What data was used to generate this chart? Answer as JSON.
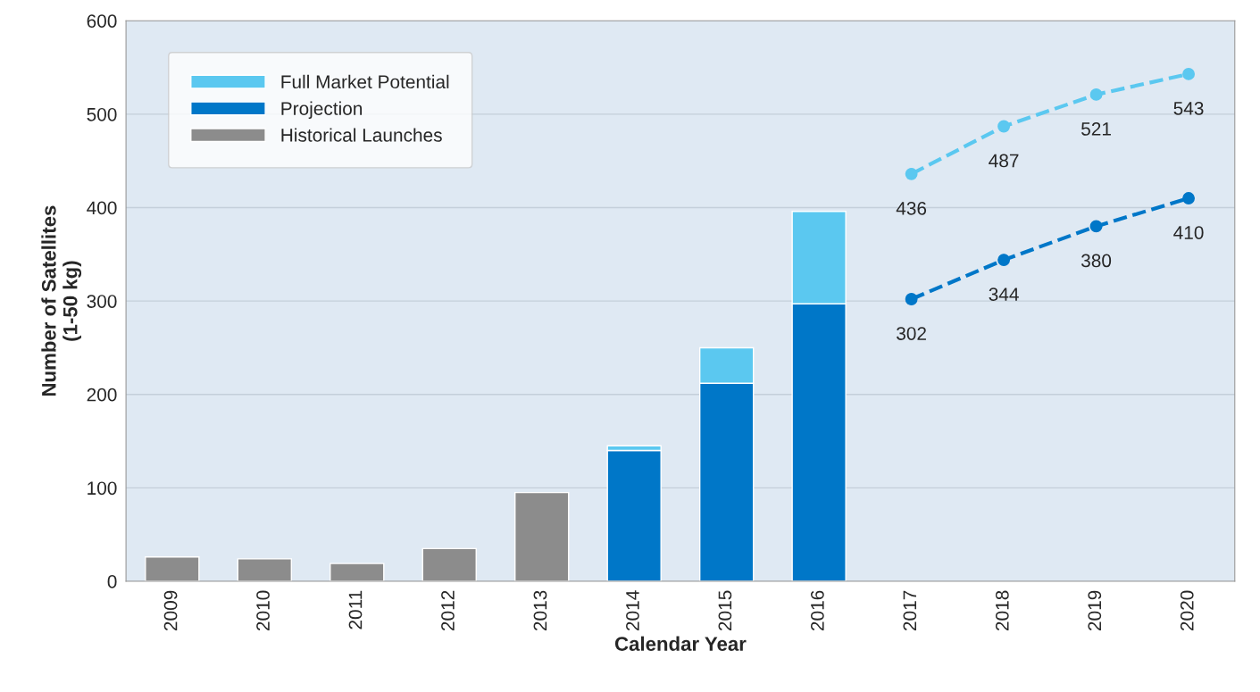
{
  "chart_data": {
    "type": "bar",
    "stacked": true,
    "xlabel": "Calendar Year",
    "ylabel": "Number of Satellites\n(1-50 kg)",
    "categories": [
      "2009",
      "2010",
      "2011",
      "2012",
      "2013",
      "2014",
      "2015",
      "2016",
      "2017",
      "2018",
      "2019",
      "2020"
    ],
    "series": [
      {
        "name": "Historical Launches",
        "color": "#8c8c8c",
        "values": [
          26,
          24,
          19,
          35,
          95,
          null,
          null,
          null,
          null,
          null,
          null,
          null
        ]
      },
      {
        "name": "Projection",
        "color": "#0077c8",
        "values": [
          null,
          null,
          null,
          null,
          null,
          140,
          212,
          297,
          null,
          null,
          null,
          null
        ]
      },
      {
        "name": "Full Market Potential",
        "color": "#5bc8f0",
        "values": [
          null,
          null,
          null,
          null,
          null,
          5,
          38,
          99,
          null,
          null,
          null,
          null
        ]
      },
      {
        "type": "line",
        "color": "#5bc8f0",
        "marker": "circle",
        "line_style": "dashed",
        "values": [
          null,
          null,
          null,
          null,
          null,
          null,
          null,
          null,
          436,
          487,
          521,
          543
        ],
        "value_labels": [
          null,
          null,
          null,
          null,
          null,
          null,
          null,
          null,
          "436",
          "487",
          "521",
          "543"
        ]
      },
      {
        "type": "line",
        "color": "#0077c8",
        "marker": "circle",
        "line_style": "dashed",
        "values": [
          null,
          null,
          null,
          null,
          null,
          null,
          null,
          null,
          302,
          344,
          380,
          410
        ],
        "value_labels": [
          null,
          null,
          null,
          null,
          null,
          null,
          null,
          null,
          "302",
          "344",
          "380",
          "410"
        ]
      }
    ],
    "ylim": [
      0,
      600
    ],
    "yticks": [
      0,
      100,
      200,
      300,
      400,
      500,
      600
    ],
    "grid": "y",
    "legend": "top left"
  }
}
